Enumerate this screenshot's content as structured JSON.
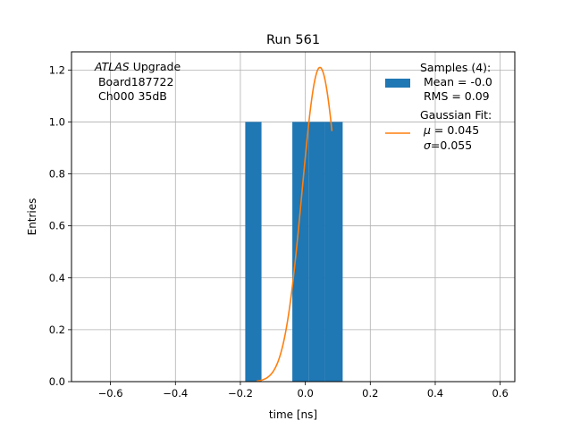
{
  "chart_data": {
    "type": "bar",
    "title": "Run 561",
    "xlabel": "time [ns]",
    "ylabel": "Entries",
    "xlim": [
      -0.72,
      0.645
    ],
    "ylim": [
      0,
      1.27
    ],
    "grid": true,
    "xticks": [
      -0.6,
      -0.4,
      -0.2,
      0.0,
      0.2,
      0.4,
      0.6
    ],
    "xtick_labels": [
      "−0.6",
      "−0.4",
      "−0.2",
      "0.0",
      "0.2",
      "0.4",
      "0.6"
    ],
    "yticks": [
      0.0,
      0.2,
      0.4,
      0.6,
      0.8,
      1.0,
      1.2
    ],
    "ytick_labels": [
      "0.0",
      "0.2",
      "0.4",
      "0.6",
      "0.8",
      "1.0",
      "1.2"
    ],
    "bars": [
      {
        "x0": -0.185,
        "x1": -0.135,
        "y": 1
      },
      {
        "x0": -0.04,
        "x1": 0.01,
        "y": 1
      },
      {
        "x0": 0.01,
        "x1": 0.06,
        "y": 1
      },
      {
        "x0": 0.06,
        "x1": 0.115,
        "y": 1
      }
    ],
    "fit": {
      "mu": 0.045,
      "sigma": 0.055,
      "amplitude": 1.21,
      "x_from": -0.15,
      "x_to": 0.082
    },
    "colors": {
      "bars": "#1f77b4",
      "fit": "#ff7f0e",
      "grid": "#b0b0b0"
    },
    "annotation": {
      "italic": "ATLAS",
      "rest": " Upgrade",
      "line2": " Board187722",
      "line3": " Ch000 35dB"
    },
    "legend": {
      "position": "upper right",
      "samples_title": "Samples (4):",
      "samples_mean": " Mean = -0.0",
      "samples_rms": " RMS = 0.09",
      "fit_title": "Gaussian Fit:",
      "fit_mu_symbol": "μ",
      "fit_mu_value": " = 0.045",
      "fit_sigma_symbol": "σ",
      "fit_sigma_value": "=0.055"
    }
  }
}
